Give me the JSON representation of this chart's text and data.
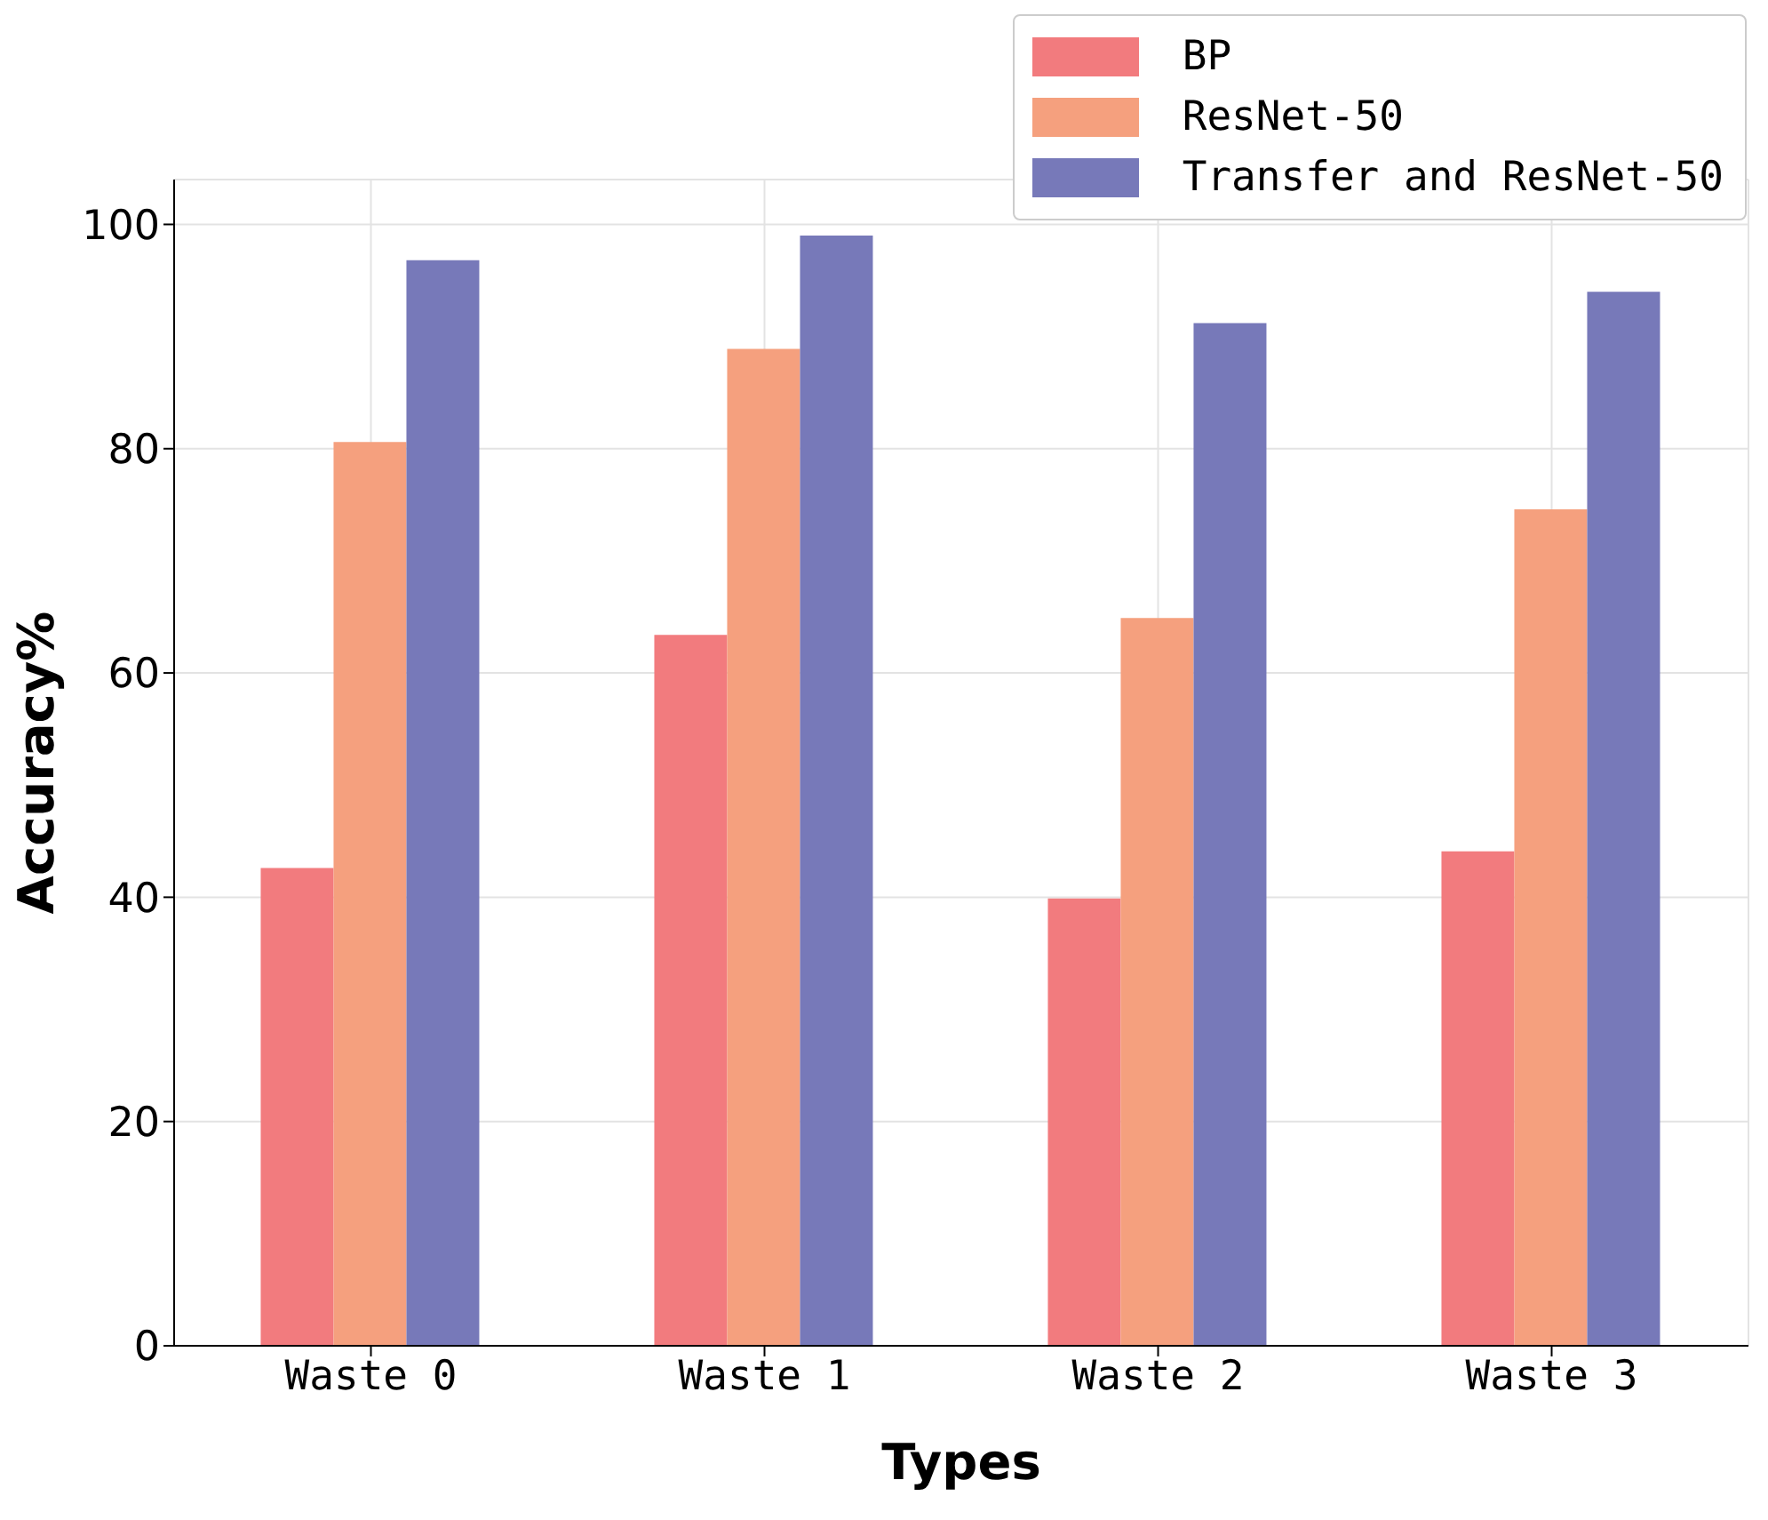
{
  "chart_data": {
    "type": "bar",
    "xlabel": "Types",
    "ylabel": "Accuracy%",
    "categories": [
      "Waste 0",
      "Waste 1",
      "Waste 2",
      "Waste 3"
    ],
    "series": [
      {
        "name": "BP",
        "color": "#f27b7e",
        "values": [
          42.6,
          63.4,
          39.9,
          44.1
        ]
      },
      {
        "name": "ResNet-50",
        "color": "#f5a07e",
        "values": [
          80.6,
          88.9,
          64.9,
          74.6
        ]
      },
      {
        "name": "Transfer and ResNet-50",
        "color": "#7779b9",
        "values": [
          96.8,
          99.0,
          91.2,
          94.0
        ]
      }
    ],
    "ylim": [
      0,
      104
    ],
    "yticks": [
      0,
      20,
      40,
      60,
      80,
      100
    ],
    "grid": true,
    "legend": "top right"
  }
}
